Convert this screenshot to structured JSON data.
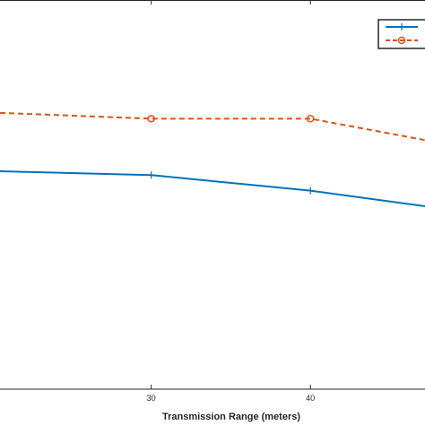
{
  "chart_data": {
    "type": "line",
    "title": "",
    "xlabel": "Transmission Range (meters)",
    "ylabel": "",
    "x": [
      30,
      40
    ],
    "xticks": [
      30,
      40
    ],
    "xlim": [
      20.5,
      47.2
    ],
    "ylim": [
      0,
      1
    ],
    "grid": false,
    "legend_position": "top-right",
    "series": [
      {
        "color": "#0072BD",
        "line_style": "solid",
        "marker": "plus",
        "x": [
          20.5,
          30,
          40,
          47.2
        ],
        "y": [
          0.56,
          0.55,
          0.51,
          0.47
        ]
      },
      {
        "color": "#D95319",
        "line_style": "dashed",
        "marker": "circle",
        "x": [
          20.5,
          30,
          40,
          47.2
        ],
        "y": [
          0.71,
          0.695,
          0.695,
          0.64
        ]
      }
    ]
  }
}
